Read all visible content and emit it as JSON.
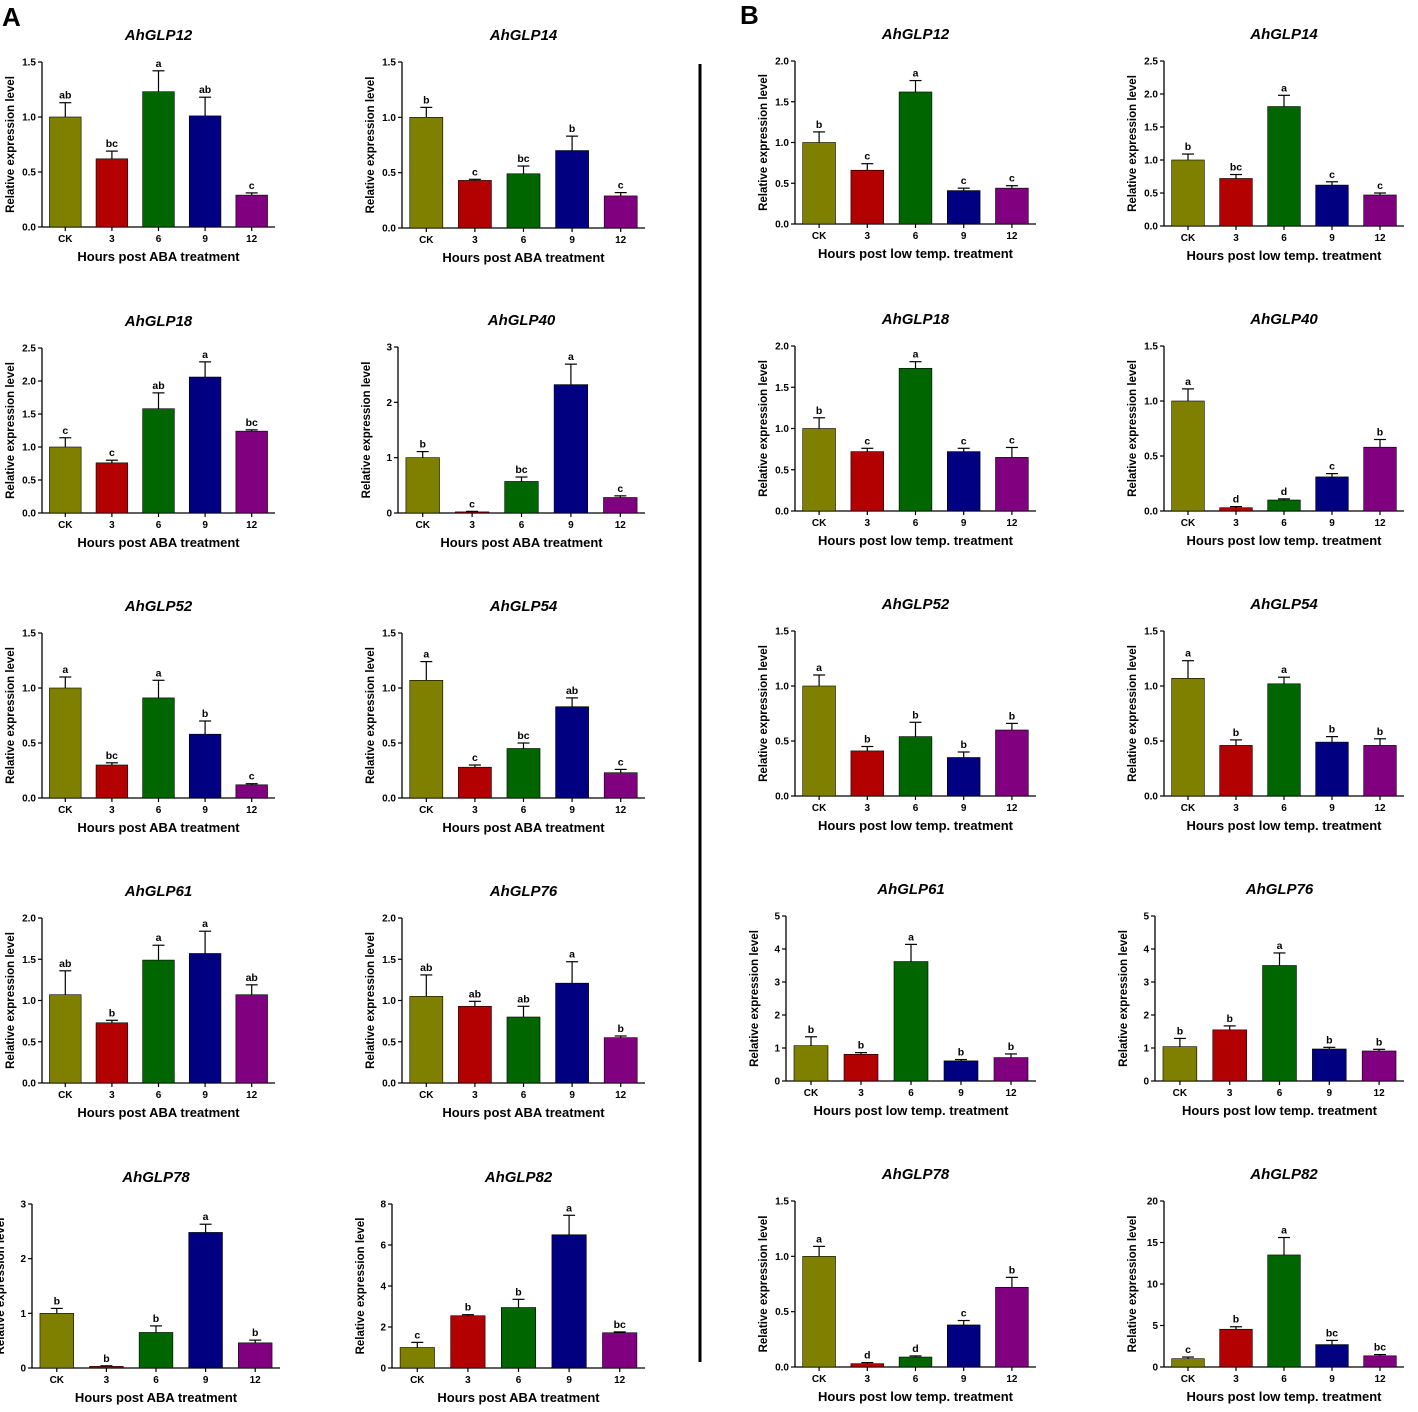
{
  "panels": [
    {
      "label": "A",
      "xlabel": "Hours post ABA treatment"
    },
    {
      "label": "B",
      "xlabel": "Hours post low temp. treatment"
    }
  ],
  "colors": [
    "#808000",
    "#b30000",
    "#006600",
    "#000080",
    "#800080"
  ],
  "chart_data": [
    {
      "type": "bar",
      "panel": "A",
      "title": "AhGLP12",
      "ylabel": "Relative expression level",
      "xlabel": "Hours post ABA treatment",
      "categories": [
        "CK",
        "3",
        "6",
        "9",
        "12"
      ],
      "values": [
        1.0,
        0.62,
        1.23,
        1.01,
        0.29
      ],
      "errors": [
        0.13,
        0.07,
        0.19,
        0.17,
        0.02
      ],
      "significance": [
        "ab",
        "bc",
        "a",
        "ab",
        "c"
      ],
      "ylim": [
        0,
        1.5
      ],
      "yticks": [
        "0.0",
        "0.5",
        "1.0",
        "1.5"
      ]
    },
    {
      "type": "bar",
      "panel": "A",
      "title": "AhGLP14",
      "ylabel": "Relative expression level",
      "xlabel": "Hours post ABA treatment",
      "categories": [
        "CK",
        "3",
        "6",
        "9",
        "12"
      ],
      "values": [
        1.0,
        0.43,
        0.49,
        0.7,
        0.29
      ],
      "errors": [
        0.09,
        0.01,
        0.07,
        0.13,
        0.03
      ],
      "significance": [
        "b",
        "c",
        "bc",
        "b",
        "c"
      ],
      "ylim": [
        0,
        1.5
      ],
      "yticks": [
        "0.0",
        "0.5",
        "1.0",
        "1.5"
      ]
    },
    {
      "type": "bar",
      "panel": "A",
      "title": "AhGLP18",
      "ylabel": "Relative expression level",
      "xlabel": "Hours post ABA treatment",
      "categories": [
        "CK",
        "3",
        "6",
        "9",
        "12"
      ],
      "values": [
        1.0,
        0.76,
        1.58,
        2.06,
        1.24
      ],
      "errors": [
        0.14,
        0.04,
        0.24,
        0.23,
        0.02
      ],
      "significance": [
        "c",
        "c",
        "ab",
        "a",
        "bc"
      ],
      "ylim": [
        0,
        2.5
      ],
      "yticks": [
        "0.0",
        "0.5",
        "1.0",
        "1.5",
        "2.0",
        "2.5"
      ]
    },
    {
      "type": "bar",
      "panel": "A",
      "title": "AhGLP40",
      "ylabel": "Relative expression level",
      "xlabel": "Hours post ABA treatment",
      "categories": [
        "CK",
        "3",
        "6",
        "9",
        "12"
      ],
      "values": [
        1.0,
        0.02,
        0.57,
        2.32,
        0.28
      ],
      "errors": [
        0.11,
        0.01,
        0.08,
        0.37,
        0.03
      ],
      "significance": [
        "b",
        "c",
        "bc",
        "a",
        "c"
      ],
      "ylim": [
        0,
        3
      ],
      "yticks": [
        "0",
        "1",
        "2",
        "3"
      ]
    },
    {
      "type": "bar",
      "panel": "A",
      "title": "AhGLP52",
      "ylabel": "Relative expression level",
      "xlabel": "Hours post ABA treatment",
      "categories": [
        "CK",
        "3",
        "6",
        "9",
        "12"
      ],
      "values": [
        1.0,
        0.3,
        0.91,
        0.58,
        0.12
      ],
      "errors": [
        0.1,
        0.02,
        0.16,
        0.12,
        0.01
      ],
      "significance": [
        "a",
        "bc",
        "a",
        "b",
        "c"
      ],
      "ylim": [
        0,
        1.5
      ],
      "yticks": [
        "0.0",
        "0.5",
        "1.0",
        "1.5"
      ]
    },
    {
      "type": "bar",
      "panel": "A",
      "title": "AhGLP54",
      "ylabel": "Relative expression level",
      "xlabel": "Hours post ABA treatment",
      "categories": [
        "CK",
        "3",
        "6",
        "9",
        "12"
      ],
      "values": [
        1.07,
        0.28,
        0.45,
        0.83,
        0.23
      ],
      "errors": [
        0.17,
        0.02,
        0.05,
        0.08,
        0.03
      ],
      "significance": [
        "a",
        "c",
        "bc",
        "ab",
        "c"
      ],
      "ylim": [
        0,
        1.5
      ],
      "yticks": [
        "0.0",
        "0.5",
        "1.0",
        "1.5"
      ]
    },
    {
      "type": "bar",
      "panel": "A",
      "title": "AhGLP61",
      "ylabel": "Relative expression level",
      "xlabel": "Hours post ABA treatment",
      "categories": [
        "CK",
        "3",
        "6",
        "9",
        "12"
      ],
      "values": [
        1.07,
        0.73,
        1.49,
        1.57,
        1.07
      ],
      "errors": [
        0.29,
        0.03,
        0.18,
        0.27,
        0.12
      ],
      "significance": [
        "ab",
        "b",
        "a",
        "a",
        "ab"
      ],
      "ylim": [
        0,
        2.0
      ],
      "yticks": [
        "0.0",
        "0.5",
        "1.0",
        "1.5",
        "2.0"
      ]
    },
    {
      "type": "bar",
      "panel": "A",
      "title": "AhGLP76",
      "ylabel": "Relative expression level",
      "xlabel": "Hours post ABA treatment",
      "categories": [
        "CK",
        "3",
        "6",
        "9",
        "12"
      ],
      "values": [
        1.05,
        0.93,
        0.8,
        1.21,
        0.55
      ],
      "errors": [
        0.26,
        0.06,
        0.13,
        0.26,
        0.02
      ],
      "significance": [
        "ab",
        "ab",
        "ab",
        "a",
        "b"
      ],
      "ylim": [
        0,
        2.0
      ],
      "yticks": [
        "0.0",
        "0.5",
        "1.0",
        "1.5",
        "2.0"
      ]
    },
    {
      "type": "bar",
      "panel": "A",
      "title": "AhGLP78",
      "ylabel": "Relative expression level",
      "xlabel": "Hours post ABA treatment",
      "categories": [
        "CK",
        "3",
        "6",
        "9",
        "12"
      ],
      "values": [
        1.0,
        0.03,
        0.65,
        2.48,
        0.46
      ],
      "errors": [
        0.09,
        0.01,
        0.12,
        0.15,
        0.05
      ],
      "significance": [
        "b",
        "b",
        "b",
        "a",
        "b"
      ],
      "ylim": [
        0,
        3
      ],
      "yticks": [
        "0",
        "1",
        "2",
        "3"
      ]
    },
    {
      "type": "bar",
      "panel": "A",
      "title": "AhGLP82",
      "ylabel": "Relative expression level",
      "xlabel": "Hours post ABA treatment",
      "categories": [
        "CK",
        "3",
        "6",
        "9",
        "12"
      ],
      "values": [
        1.0,
        2.55,
        2.95,
        6.5,
        1.72
      ],
      "errors": [
        0.25,
        0.05,
        0.4,
        0.95,
        0.04
      ],
      "significance": [
        "c",
        "b",
        "b",
        "a",
        "bc"
      ],
      "ylim": [
        0,
        8
      ],
      "yticks": [
        "0",
        "2",
        "4",
        "6",
        "8"
      ]
    },
    {
      "type": "bar",
      "panel": "B",
      "title": "AhGLP12",
      "ylabel": "Relative expression level",
      "xlabel": "Hours post low temp. treatment",
      "categories": [
        "CK",
        "3",
        "6",
        "9",
        "12"
      ],
      "values": [
        1.0,
        0.66,
        1.62,
        0.41,
        0.44
      ],
      "errors": [
        0.13,
        0.08,
        0.14,
        0.03,
        0.03
      ],
      "significance": [
        "b",
        "c",
        "a",
        "c",
        "c"
      ],
      "ylim": [
        0,
        2.0
      ],
      "yticks": [
        "0.0",
        "0.5",
        "1.0",
        "1.5",
        "2.0"
      ]
    },
    {
      "type": "bar",
      "panel": "B",
      "title": "AhGLP14",
      "ylabel": "Relative expression level",
      "xlabel": "Hours post low temp. treatment",
      "categories": [
        "CK",
        "3",
        "6",
        "9",
        "12"
      ],
      "values": [
        1.0,
        0.72,
        1.81,
        0.62,
        0.47
      ],
      "errors": [
        0.09,
        0.06,
        0.17,
        0.05,
        0.03
      ],
      "significance": [
        "b",
        "bc",
        "a",
        "c",
        "c"
      ],
      "ylim": [
        0,
        2.5
      ],
      "yticks": [
        "0.0",
        "0.5",
        "1.0",
        "1.5",
        "2.0",
        "2.5"
      ]
    },
    {
      "type": "bar",
      "panel": "B",
      "title": "AhGLP18",
      "ylabel": "Relative expression level",
      "xlabel": "Hours post low temp. treatment",
      "categories": [
        "CK",
        "3",
        "6",
        "9",
        "12"
      ],
      "values": [
        1.0,
        0.72,
        1.73,
        0.72,
        0.65
      ],
      "errors": [
        0.13,
        0.04,
        0.08,
        0.04,
        0.12
      ],
      "significance": [
        "b",
        "c",
        "a",
        "c",
        "c"
      ],
      "ylim": [
        0,
        2.0
      ],
      "yticks": [
        "0.0",
        "0.5",
        "1.0",
        "1.5",
        "2.0"
      ]
    },
    {
      "type": "bar",
      "panel": "B",
      "title": "AhGLP40",
      "ylabel": "Relative expression level",
      "xlabel": "Hours post low temp. treatment",
      "categories": [
        "CK",
        "3",
        "6",
        "9",
        "12"
      ],
      "values": [
        1.0,
        0.03,
        0.1,
        0.31,
        0.58
      ],
      "errors": [
        0.11,
        0.01,
        0.01,
        0.03,
        0.07
      ],
      "significance": [
        "a",
        "d",
        "d",
        "c",
        "b"
      ],
      "ylim": [
        0,
        1.5
      ],
      "yticks": [
        "0.0",
        "0.5",
        "1.0",
        "1.5"
      ]
    },
    {
      "type": "bar",
      "panel": "B",
      "title": "AhGLP52",
      "ylabel": "Relative expression level",
      "xlabel": "Hours post low temp. treatment",
      "categories": [
        "CK",
        "3",
        "6",
        "9",
        "12"
      ],
      "values": [
        1.0,
        0.41,
        0.54,
        0.35,
        0.6
      ],
      "errors": [
        0.1,
        0.04,
        0.13,
        0.05,
        0.06
      ],
      "significance": [
        "a",
        "b",
        "b",
        "b",
        "b"
      ],
      "ylim": [
        0,
        1.5
      ],
      "yticks": [
        "0.0",
        "0.5",
        "1.0",
        "1.5"
      ]
    },
    {
      "type": "bar",
      "panel": "B",
      "title": "AhGLP54",
      "ylabel": "Relative expression level",
      "xlabel": "Hours post low temp. treatment",
      "categories": [
        "CK",
        "3",
        "6",
        "9",
        "12"
      ],
      "values": [
        1.07,
        0.46,
        1.02,
        0.49,
        0.46
      ],
      "errors": [
        0.16,
        0.05,
        0.06,
        0.05,
        0.06
      ],
      "significance": [
        "a",
        "b",
        "a",
        "b",
        "b"
      ],
      "ylim": [
        0,
        1.5
      ],
      "yticks": [
        "0.0",
        "0.5",
        "1.0",
        "1.5"
      ]
    },
    {
      "type": "bar",
      "panel": "B",
      "title": "AhGLP61",
      "ylabel": "Relative expression level",
      "xlabel": "Hours post low temp. treatment",
      "categories": [
        "CK",
        "3",
        "6",
        "9",
        "12"
      ],
      "values": [
        1.07,
        0.81,
        3.62,
        0.61,
        0.71
      ],
      "errors": [
        0.27,
        0.05,
        0.52,
        0.04,
        0.11
      ],
      "significance": [
        "b",
        "b",
        "a",
        "b",
        "b"
      ],
      "ylim": [
        0,
        5
      ],
      "yticks": [
        "0",
        "1",
        "2",
        "3",
        "4",
        "5"
      ]
    },
    {
      "type": "bar",
      "panel": "B",
      "title": "AhGLP76",
      "ylabel": "Relative expression level",
      "xlabel": "Hours post low temp. treatment",
      "categories": [
        "CK",
        "3",
        "6",
        "9",
        "12"
      ],
      "values": [
        1.04,
        1.55,
        3.5,
        0.97,
        0.91
      ],
      "errors": [
        0.25,
        0.12,
        0.38,
        0.05,
        0.05
      ],
      "significance": [
        "b",
        "b",
        "a",
        "b",
        "b"
      ],
      "ylim": [
        0,
        5
      ],
      "yticks": [
        "0",
        "1",
        "2",
        "3",
        "4",
        "5"
      ]
    },
    {
      "type": "bar",
      "panel": "B",
      "title": "AhGLP78",
      "ylabel": "Relative expression level",
      "xlabel": "Hours post low temp. treatment",
      "categories": [
        "CK",
        "3",
        "6",
        "9",
        "12"
      ],
      "values": [
        1.0,
        0.03,
        0.09,
        0.38,
        0.72
      ],
      "errors": [
        0.09,
        0.01,
        0.01,
        0.04,
        0.09
      ],
      "significance": [
        "a",
        "d",
        "d",
        "c",
        "b"
      ],
      "ylim": [
        0,
        1.5
      ],
      "yticks": [
        "0.0",
        "0.5",
        "1.0",
        "1.5"
      ]
    },
    {
      "type": "bar",
      "panel": "B",
      "title": "AhGLP82",
      "ylabel": "Relative expression level",
      "xlabel": "Hours post low temp. treatment",
      "categories": [
        "CK",
        "3",
        "6",
        "9",
        "12"
      ],
      "values": [
        1.0,
        4.55,
        13.5,
        2.7,
        1.35
      ],
      "errors": [
        0.2,
        0.3,
        2.1,
        0.5,
        0.15
      ],
      "significance": [
        "c",
        "b",
        "a",
        "bc",
        "bc"
      ],
      "ylim": [
        0,
        20
      ],
      "yticks": [
        "0",
        "5",
        "10",
        "15",
        "20"
      ]
    }
  ]
}
